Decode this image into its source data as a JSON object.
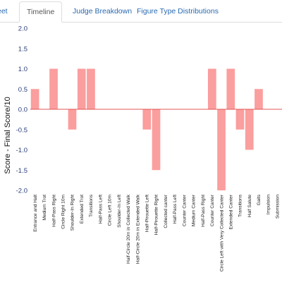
{
  "tabs": [
    {
      "label": "eet",
      "active": false
    },
    {
      "label": "Timeline",
      "active": true
    },
    {
      "label": "Judge Breakdown",
      "active": false
    },
    {
      "label": "Figure Type Distributions",
      "active": false
    }
  ],
  "chart_data": {
    "type": "bar",
    "ylabel": "Score - Final Score/10",
    "ylim": [
      -2.0,
      2.0
    ],
    "yticks": [
      "2.0",
      "1.5",
      "1.0",
      "0.5",
      "0.0",
      "-0.5",
      "-1.0",
      "-1.5",
      "-2.0"
    ],
    "grid": false,
    "bar_color": "#fb9e9e",
    "zero_line_color": "#e05555",
    "categories": [
      "Entrance and Halt",
      "Medium Trot",
      "Half-Pass Right",
      "Circle Right 10m",
      "Shoulder-In Right",
      "Extended Trot",
      "Transitions",
      "Half-Pass Left",
      "Circle Left 10m",
      "Shoulder-In Left",
      "Half-Circle 20m in Collected Walk",
      "Half-Circle 20m in Extended Walk",
      "Half-Pirouette Left",
      "Half-Pirouette Right",
      "Collected canter",
      "Half-Pass Left",
      "Counter Canter",
      "Medium Canter",
      "Half-Pass Right",
      "Counter Canter",
      "Circle Left with Very Collected Canter",
      "Extended Canter",
      "Transitions",
      "Half Salute",
      "Gaits",
      "Impulsion",
      "Submission"
    ],
    "values": [
      0.5,
      0,
      1.0,
      0,
      -0.5,
      1.0,
      1.0,
      0,
      0,
      0,
      0,
      0,
      -0.5,
      -1.5,
      0,
      0,
      0,
      0,
      0,
      1.0,
      -2.0,
      1.0,
      -0.5,
      -1.0,
      0.5,
      0,
      0
    ]
  }
}
